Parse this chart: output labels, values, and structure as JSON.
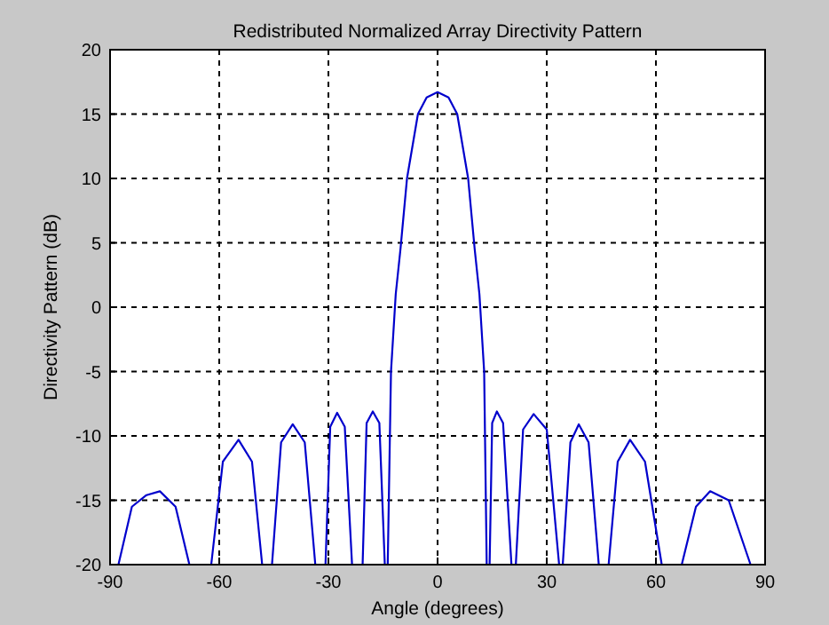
{
  "chart_data": {
    "type": "line",
    "title": "Redistributed Normalized Array Directivity Pattern",
    "xlabel": "Angle (degrees)",
    "ylabel": "Directivity Pattern (dB)",
    "xlim": [
      -90,
      90
    ],
    "ylim": [
      -20,
      20
    ],
    "xticks": [
      -90,
      -60,
      -30,
      0,
      30,
      60,
      90
    ],
    "yticks": [
      -20,
      -15,
      -10,
      -5,
      0,
      5,
      10,
      15,
      20
    ],
    "grid": true,
    "marker": "none",
    "line_style": "solid",
    "series": [
      {
        "color": "#0000cc",
        "x": [
          -87.7,
          -84,
          -80,
          -76.3,
          -72,
          -68.2,
          null,
          -62.2,
          -59,
          -54.7,
          -51,
          -48.2,
          null,
          -45.5,
          -43,
          -39.8,
          -36.5,
          -33.6,
          null,
          -30.8,
          -29.5,
          -27.6,
          -25.5,
          -23.5,
          null,
          -20.6,
          -19.5,
          -17.8,
          -16,
          -14.5,
          null,
          -13.7,
          -12.8,
          -11.5,
          -10.2,
          -8.4,
          -5.4,
          -3,
          0,
          3,
          5.4,
          8.4,
          10.2,
          11.5,
          12.8,
          13.5,
          null,
          14.3,
          15,
          16.3,
          18,
          20.3,
          null,
          21.5,
          23.5,
          26.4,
          30,
          33.4,
          null,
          34.4,
          36.5,
          38.8,
          41.5,
          44.3,
          null,
          47,
          49.5,
          52.9,
          57,
          61.6,
          null,
          67.1,
          71,
          74.9,
          80,
          86
        ],
        "values": [
          -20,
          -15.5,
          -14.6,
          -14.3,
          -15.5,
          -20,
          null,
          -20,
          -12,
          -10.3,
          -12,
          -20,
          null,
          -20,
          -10.5,
          -9.1,
          -10.5,
          -20,
          null,
          -20,
          -9.3,
          -8.2,
          -9.3,
          -20,
          null,
          -20,
          -9,
          -8.1,
          -9,
          -20,
          null,
          -20,
          -5,
          1,
          4.5,
          10,
          15,
          16.3,
          16.7,
          16.3,
          15,
          10,
          4.5,
          1,
          -5,
          -20,
          null,
          -20,
          -9,
          -8.1,
          -9,
          -20,
          null,
          -20,
          -9.5,
          -8.3,
          -9.5,
          -20,
          null,
          -20,
          -10.5,
          -9.1,
          -10.5,
          -20,
          null,
          -20,
          -12,
          -10.3,
          -12,
          -20,
          null,
          -20,
          -15.5,
          -14.3,
          -15,
          -20
        ]
      }
    ]
  }
}
